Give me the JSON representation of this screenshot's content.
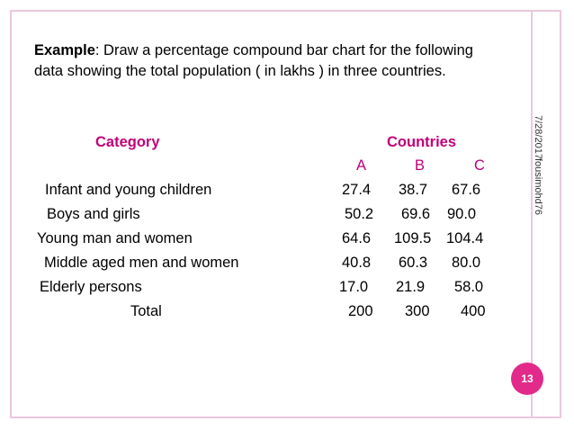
{
  "intro": {
    "lead": "Example",
    "text": ":  Draw a percentage compound bar chart for the following data showing the total population ( in lakhs ) in three countries."
  },
  "side": {
    "date": "7/28/2017",
    "author": "fousimohd76"
  },
  "table": {
    "category_header": "Category",
    "countries_header": "Countries",
    "columns": [
      "A",
      "B",
      "C"
    ],
    "rows": [
      {
        "label": "Infant and young children",
        "values": [
          "27.4",
          "38.7",
          "67.6"
        ]
      },
      {
        "label": "Boys and girls",
        "values": [
          "50.2",
          "69.6",
          "90.0"
        ]
      },
      {
        "label": "Young man and women",
        "values": [
          "64.6",
          "109.5",
          "104.4"
        ]
      },
      {
        "label": "Middle aged men and women",
        "values": [
          "40.8",
          "60.3",
          "80.0"
        ]
      },
      {
        "label": "Elderly persons",
        "values": [
          "17.0",
          "21.9",
          "58.0"
        ]
      },
      {
        "label": "Total",
        "values": [
          "200",
          "300",
          "400"
        ]
      }
    ]
  },
  "slide_number": "13",
  "colors": {
    "accent": "#c00078",
    "badge": "#e12a8a",
    "border": "#e9c8dd"
  }
}
